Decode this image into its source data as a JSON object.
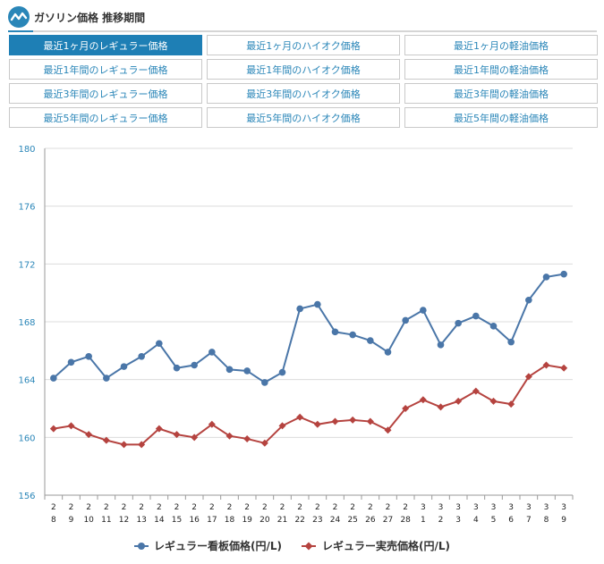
{
  "header": {
    "title": "ガソリン価格 推移期間",
    "logo_icon": "price-wave-icon"
  },
  "tabs": [
    {
      "label": "最近1ヶ月のレギュラー価格",
      "active": true
    },
    {
      "label": "最近1ヶ月のハイオク価格",
      "active": false
    },
    {
      "label": "最近1ヶ月の軽油価格",
      "active": false
    },
    {
      "label": "最近1年間のレギュラー価格",
      "active": false
    },
    {
      "label": "最近1年間のハイオク価格",
      "active": false
    },
    {
      "label": "最近1年間の軽油価格",
      "active": false
    },
    {
      "label": "最近3年間のレギュラー価格",
      "active": false
    },
    {
      "label": "最近3年間のハイオク価格",
      "active": false
    },
    {
      "label": "最近3年間の軽油価格",
      "active": false
    },
    {
      "label": "最近5年間のレギュラー価格",
      "active": false
    },
    {
      "label": "最近5年間のハイオク価格",
      "active": false
    },
    {
      "label": "最近5年間の軽油価格",
      "active": false
    }
  ],
  "colors": {
    "accent": "#1e7fb5",
    "series1": "#4a76a8",
    "series2": "#b5433f",
    "grid": "#dcdcdc"
  },
  "chart_data": {
    "type": "line",
    "x": [
      {
        "month": "2",
        "day": "8"
      },
      {
        "month": "2",
        "day": "9"
      },
      {
        "month": "2",
        "day": "10"
      },
      {
        "month": "2",
        "day": "11"
      },
      {
        "month": "2",
        "day": "12"
      },
      {
        "month": "2",
        "day": "13"
      },
      {
        "month": "2",
        "day": "14"
      },
      {
        "month": "2",
        "day": "15"
      },
      {
        "month": "2",
        "day": "16"
      },
      {
        "month": "2",
        "day": "17"
      },
      {
        "month": "2",
        "day": "18"
      },
      {
        "month": "2",
        "day": "19"
      },
      {
        "month": "2",
        "day": "20"
      },
      {
        "month": "2",
        "day": "21"
      },
      {
        "month": "2",
        "day": "22"
      },
      {
        "month": "2",
        "day": "23"
      },
      {
        "month": "2",
        "day": "24"
      },
      {
        "month": "2",
        "day": "25"
      },
      {
        "month": "2",
        "day": "26"
      },
      {
        "month": "2",
        "day": "27"
      },
      {
        "month": "2",
        "day": "28"
      },
      {
        "month": "3",
        "day": "1"
      },
      {
        "month": "3",
        "day": "2"
      },
      {
        "month": "3",
        "day": "3"
      },
      {
        "month": "3",
        "day": "4"
      },
      {
        "month": "3",
        "day": "5"
      },
      {
        "month": "3",
        "day": "6"
      },
      {
        "month": "3",
        "day": "7"
      },
      {
        "month": "3",
        "day": "8"
      },
      {
        "month": "3",
        "day": "9"
      }
    ],
    "series": [
      {
        "name": "レギュラー看板価格(円/L)",
        "marker": "circle",
        "values": [
          164.1,
          165.2,
          165.6,
          164.1,
          164.9,
          165.6,
          166.5,
          164.8,
          165.0,
          165.9,
          164.7,
          164.6,
          163.8,
          164.5,
          168.9,
          169.2,
          167.3,
          167.1,
          166.7,
          165.9,
          168.1,
          168.8,
          166.4,
          167.9,
          168.4,
          167.7,
          166.6,
          169.5,
          171.1,
          171.3
        ]
      },
      {
        "name": "レギュラー実売価格(円/L)",
        "marker": "diamond",
        "values": [
          160.6,
          160.8,
          160.2,
          159.8,
          159.5,
          159.5,
          160.6,
          160.2,
          160.0,
          160.9,
          160.1,
          159.9,
          159.6,
          160.8,
          161.4,
          160.9,
          161.1,
          161.2,
          161.1,
          160.5,
          162.0,
          162.6,
          162.1,
          162.5,
          163.2,
          162.5,
          162.3,
          164.2,
          165.0,
          164.8
        ]
      }
    ],
    "yticks": [
      156,
      160,
      164,
      168,
      172,
      176,
      180
    ],
    "ylim": [
      156,
      180
    ],
    "grid": true,
    "legend_position": "bottom"
  }
}
